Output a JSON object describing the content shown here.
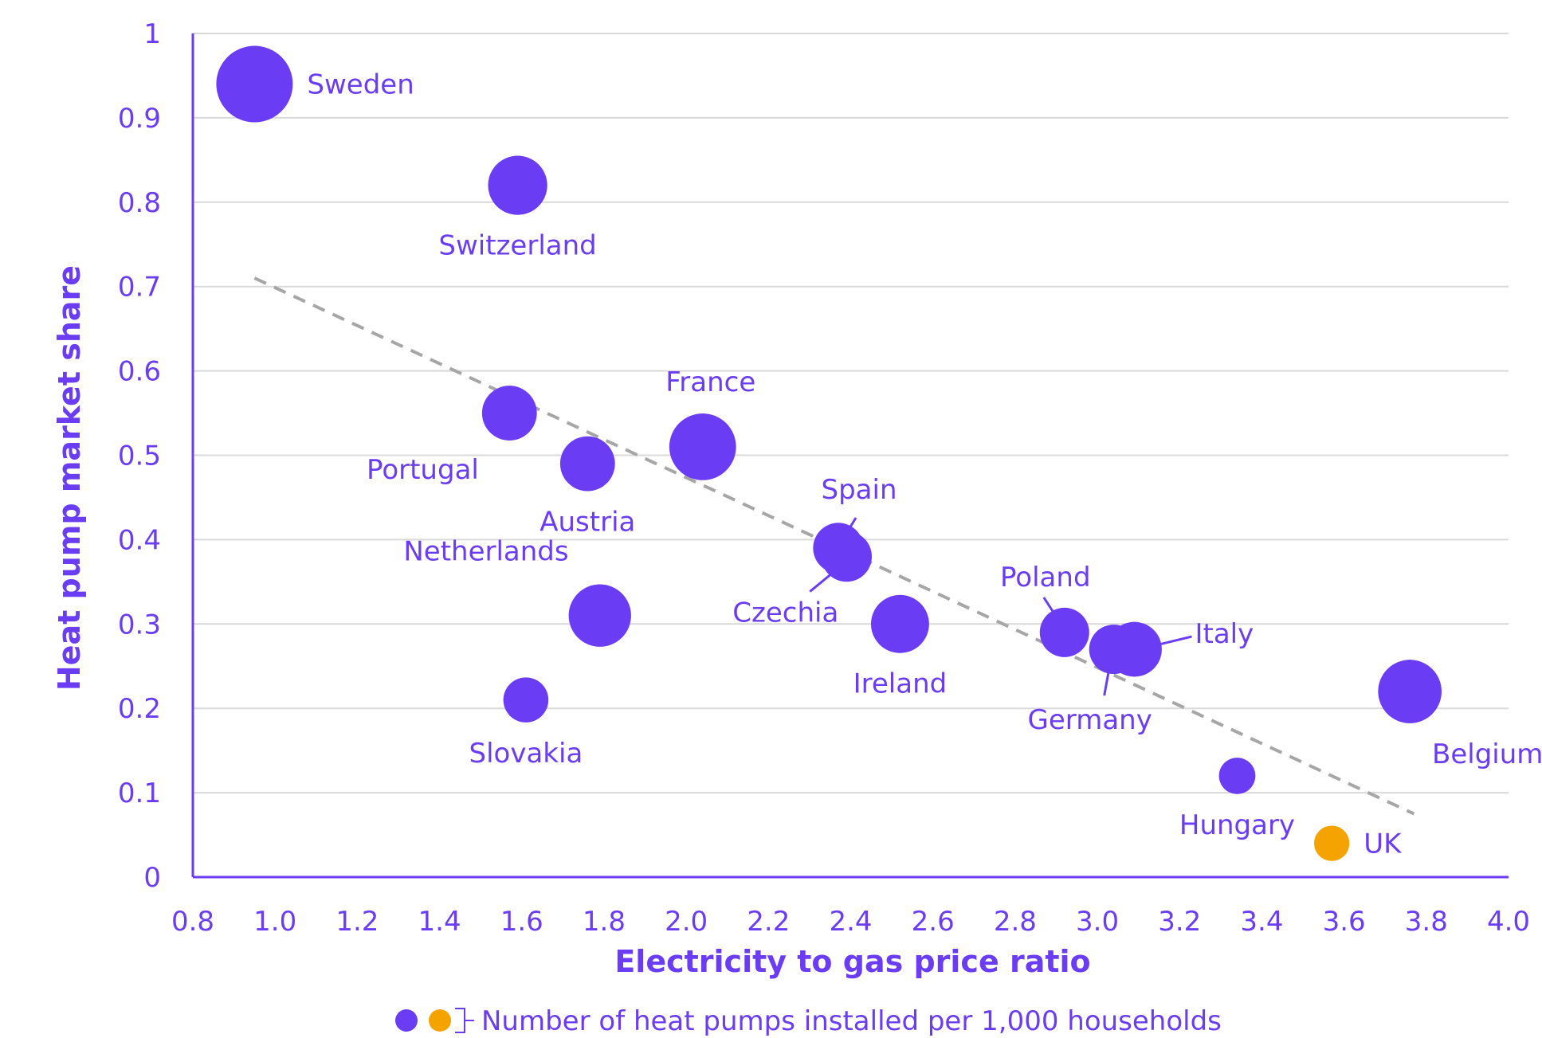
{
  "chart_data": {
    "type": "scatter",
    "xlabel": "Electricity to gas price ratio",
    "ylabel": "Heat pump market share",
    "xlim": [
      0.8,
      4.0
    ],
    "ylim": [
      0,
      1
    ],
    "x_ticks": [
      "0.8",
      "1.0",
      "1.2",
      "1.4",
      "1.6",
      "1.8",
      "2.0",
      "2.2",
      "2.4",
      "2.6",
      "2.8",
      "3.0",
      "3.2",
      "3.4",
      "3.6",
      "3.8",
      "4.0"
    ],
    "y_ticks": [
      "0",
      "0.1",
      "0.2",
      "0.3",
      "0.4",
      "0.5",
      "0.6",
      "0.7",
      "0.8",
      "0.9",
      "1"
    ],
    "grid": "horizontal",
    "trendline": {
      "style": "dashed",
      "color": "#a6a6a6",
      "x": [
        0.95,
        3.77
      ],
      "y": [
        0.71,
        0.075
      ]
    },
    "colors": {
      "main": "#6a3df5",
      "highlight": "#f5a300",
      "axis": "#6a3df5",
      "grid": "#d9d9d9"
    },
    "points": [
      {
        "label": "Sweden",
        "x": 0.95,
        "y": 0.94,
        "size": 1.0,
        "color": "main",
        "label_pos": "right"
      },
      {
        "label": "Switzerland",
        "x": 1.59,
        "y": 0.82,
        "size": 0.68,
        "color": "main",
        "label_pos": "below"
      },
      {
        "label": "Portugal",
        "x": 1.57,
        "y": 0.55,
        "size": 0.6,
        "color": "main",
        "label_pos": "below-left"
      },
      {
        "label": "Austria",
        "x": 1.76,
        "y": 0.49,
        "size": 0.6,
        "color": "main",
        "label_pos": "below"
      },
      {
        "label": "France",
        "x": 2.04,
        "y": 0.51,
        "size": 0.82,
        "color": "main",
        "label_pos": "above"
      },
      {
        "label": "Netherlands",
        "x": 1.79,
        "y": 0.31,
        "size": 0.74,
        "color": "main",
        "label_pos": "above-left"
      },
      {
        "label": "Slovakia",
        "x": 1.61,
        "y": 0.21,
        "size": 0.42,
        "color": "main",
        "label_pos": "below"
      },
      {
        "label": "Spain",
        "x": 2.37,
        "y": 0.39,
        "size": 0.52,
        "color": "main",
        "label_pos": "above-right"
      },
      {
        "label": "Czechia",
        "x": 2.39,
        "y": 0.38,
        "size": 0.52,
        "color": "main",
        "label_pos": "below-left"
      },
      {
        "label": "Ireland",
        "x": 2.52,
        "y": 0.3,
        "size": 0.66,
        "color": "main",
        "label_pos": "below"
      },
      {
        "label": "Poland",
        "x": 2.92,
        "y": 0.29,
        "size": 0.5,
        "color": "main",
        "label_pos": "above-left"
      },
      {
        "label": "Germany",
        "x": 3.04,
        "y": 0.27,
        "size": 0.5,
        "color": "main",
        "label_pos": "below"
      },
      {
        "label": "Italy",
        "x": 3.09,
        "y": 0.27,
        "size": 0.6,
        "color": "main",
        "label_pos": "right"
      },
      {
        "label": "Belgium",
        "x": 3.76,
        "y": 0.22,
        "size": 0.76,
        "color": "main",
        "label_pos": "below-right"
      },
      {
        "label": "Hungary",
        "x": 3.34,
        "y": 0.12,
        "size": 0.26,
        "color": "main",
        "label_pos": "below"
      },
      {
        "label": "UK",
        "x": 3.57,
        "y": 0.04,
        "size": 0.24,
        "color": "highlight",
        "label_pos": "right"
      }
    ],
    "legend": {
      "text": "Number of heat pumps installed per 1,000 households",
      "placement": "bottom-center"
    }
  }
}
